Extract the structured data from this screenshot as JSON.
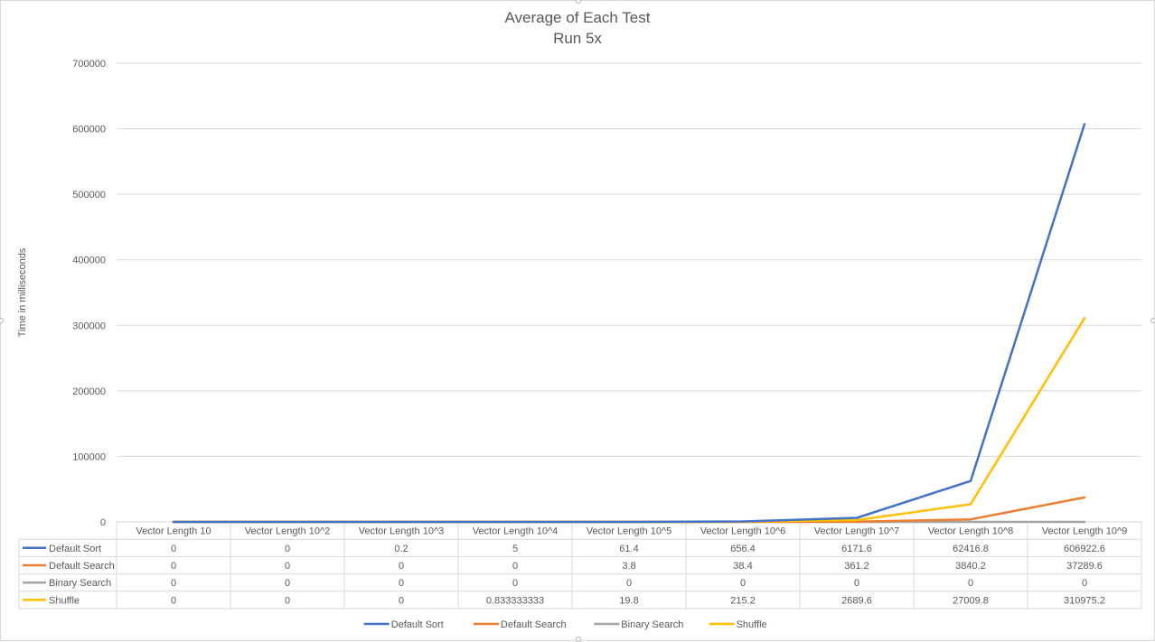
{
  "chart_data": {
    "type": "line",
    "title": "Average of Each Test",
    "subtitle": "Run 5x",
    "xlabel": "",
    "ylabel": "Time in milliseconds",
    "ylim": [
      0,
      700000
    ],
    "yticks": [
      "0",
      "100000",
      "200000",
      "300000",
      "400000",
      "500000",
      "600000",
      "700000"
    ],
    "ytick_values": [
      0,
      100000,
      200000,
      300000,
      400000,
      500000,
      600000,
      700000
    ],
    "grid": true,
    "legend_position": "bottom",
    "categories": [
      "Vector Length 10",
      "Vector Length 10^2",
      "Vector Length 10^3",
      "Vector Length 10^4",
      "Vector Length 10^5",
      "Vector Length 10^6",
      "Vector Length 10^7",
      "Vector Length 10^8",
      "Vector Length 10^9"
    ],
    "series": [
      {
        "name": "Default Sort",
        "color": "#4472c4",
        "values": [
          0,
          0,
          0.2,
          5,
          61.4,
          656.4,
          6171.6,
          62416.8,
          606922.6
        ],
        "labels": [
          "0",
          "0",
          "0.2",
          "5",
          "61.4",
          "656.4",
          "6171.6",
          "62416.8",
          "606922.6"
        ]
      },
      {
        "name": "Default Search",
        "color": "#ed7d31",
        "values": [
          0,
          0,
          0,
          0,
          3.8,
          38.4,
          361.2,
          3840.2,
          37289.6
        ],
        "labels": [
          "0",
          "0",
          "0",
          "0",
          "3.8",
          "38.4",
          "361.2",
          "3840.2",
          "37289.6"
        ]
      },
      {
        "name": "Binary Search",
        "color": "#a5a5a5",
        "values": [
          0,
          0,
          0,
          0,
          0,
          0,
          0,
          0,
          0
        ],
        "labels": [
          "0",
          "0",
          "0",
          "0",
          "0",
          "0",
          "0",
          "0",
          "0"
        ]
      },
      {
        "name": "Shuffle",
        "color": "#ffc000",
        "values": [
          0,
          0,
          0,
          0.833333333,
          19.8,
          215.2,
          2689.6,
          27009.8,
          310975.2
        ],
        "labels": [
          "0",
          "0",
          "0",
          "0.833333333",
          "19.8",
          "215.2",
          "2689.6",
          "27009.8",
          "310975.2"
        ]
      }
    ]
  }
}
